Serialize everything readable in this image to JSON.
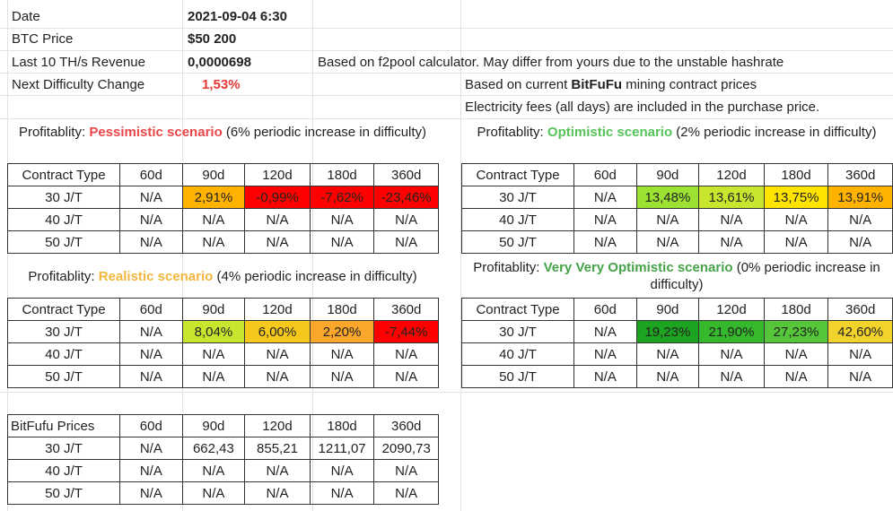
{
  "info": {
    "date_label": "Date",
    "date_value": "2021-09-04 6:30",
    "btc_label": "BTC Price",
    "btc_value": "$50 200",
    "revenue_label": "Last 10 TH/s Revenue",
    "revenue_value": "0,0000698",
    "revenue_note": "Based on f2pool calculator. May differ from yours due to the unstable hashrate",
    "difficulty_label": "Next Difficulty Change",
    "difficulty_value": "1,53%",
    "contract_note_prefix": "Based on current ",
    "contract_note_brand": "BitFuFu",
    "contract_note_suffix": " mining contract prices",
    "electricity_note": "Electricity fees (all days) are included in the purchase price."
  },
  "colors": {
    "red": "#ff0000",
    "orange": "#ffb300",
    "yellow_orange": "#f9c93e",
    "light_green": "#9be233",
    "yellow_green": "#c8e62e",
    "yellow": "#ffe400",
    "yellow2": "#f2d32b",
    "orange2": "#f9a62a",
    "dark_green": "#1ca31f",
    "green": "#35b82c",
    "mid_green": "#55c63a",
    "amber": "#f7c81c"
  },
  "headers": [
    "Contract Type",
    "60d",
    "90d",
    "120d",
    "180d",
    "360d"
  ],
  "pessimistic": {
    "prefix": "Profitablity: ",
    "name": "Pessimistic scenario",
    "suffix": " (6% periodic increase in difficulty)",
    "rows": [
      {
        "cells": [
          "30 J/T",
          "N/A",
          "2,91%",
          "-0,99%",
          "-7,62%",
          "-23,46%"
        ],
        "colors": [
          "",
          "",
          "orange",
          "red",
          "red",
          "red"
        ]
      },
      {
        "cells": [
          "40 J/T",
          "N/A",
          "N/A",
          "N/A",
          "N/A",
          "N/A"
        ],
        "colors": [
          "",
          "",
          "",
          "",
          "",
          ""
        ]
      },
      {
        "cells": [
          "50 J/T",
          "N/A",
          "N/A",
          "N/A",
          "N/A",
          "N/A"
        ],
        "colors": [
          "",
          "",
          "",
          "",
          "",
          ""
        ]
      }
    ]
  },
  "optimistic": {
    "prefix": "Profitablity: ",
    "name": "Optimistic scenario",
    "suffix": " (2% periodic increase in difficulty)",
    "rows": [
      {
        "cells": [
          "30 J/T",
          "N/A",
          "13,48%",
          "13,61%",
          "13,75%",
          "13,91%"
        ],
        "colors": [
          "",
          "",
          "light_green",
          "yellow_green",
          "yellow",
          "orange"
        ]
      },
      {
        "cells": [
          "40 J/T",
          "N/A",
          "N/A",
          "N/A",
          "N/A",
          "N/A"
        ],
        "colors": [
          "",
          "",
          "",
          "",
          "",
          ""
        ]
      },
      {
        "cells": [
          "50 J/T",
          "N/A",
          "N/A",
          "N/A",
          "N/A",
          "N/A"
        ],
        "colors": [
          "",
          "",
          "",
          "",
          "",
          ""
        ]
      }
    ]
  },
  "realistic": {
    "prefix": "Profitablity: ",
    "name": "Realistic scenario",
    "suffix": " (4% periodic increase in difficulty)",
    "rows": [
      {
        "cells": [
          "30 J/T",
          "N/A",
          "8,04%",
          "6,00%",
          "2,20%",
          "-7,44%"
        ],
        "colors": [
          "",
          "",
          "yellow_green",
          "amber",
          "orange2",
          "red"
        ]
      },
      {
        "cells": [
          "40 J/T",
          "N/A",
          "N/A",
          "N/A",
          "N/A",
          "N/A"
        ],
        "colors": [
          "",
          "",
          "",
          "",
          "",
          ""
        ]
      },
      {
        "cells": [
          "50 J/T",
          "N/A",
          "N/A",
          "N/A",
          "N/A",
          "N/A"
        ],
        "colors": [
          "",
          "",
          "",
          "",
          "",
          ""
        ]
      }
    ]
  },
  "very_optimistic": {
    "prefix": "Profitablity: ",
    "name": "Very Very Optimistic scenario",
    "suffix": " (0% periodic increase in difficulty)",
    "rows": [
      {
        "cells": [
          "30 J/T",
          "N/A",
          "19,23%",
          "21,90%",
          "27,23%",
          "42,60%"
        ],
        "colors": [
          "",
          "",
          "dark_green",
          "green",
          "mid_green",
          "yellow2"
        ]
      },
      {
        "cells": [
          "40 J/T",
          "N/A",
          "N/A",
          "N/A",
          "N/A",
          "N/A"
        ],
        "colors": [
          "",
          "",
          "",
          "",
          "",
          ""
        ]
      },
      {
        "cells": [
          "50 J/T",
          "N/A",
          "N/A",
          "N/A",
          "N/A",
          "N/A"
        ],
        "colors": [
          "",
          "",
          "",
          "",
          "",
          ""
        ]
      }
    ]
  },
  "prices": {
    "headers": [
      "BitFufu Prices",
      "60d",
      "90d",
      "120d",
      "180d",
      "360d"
    ],
    "rows": [
      {
        "cells": [
          "30 J/T",
          "N/A",
          "662,43",
          "855,21",
          "1211,07",
          "2090,73"
        ]
      },
      {
        "cells": [
          "40 J/T",
          "N/A",
          "N/A",
          "N/A",
          "N/A",
          "N/A"
        ]
      },
      {
        "cells": [
          "50 J/T",
          "N/A",
          "N/A",
          "N/A",
          "N/A",
          "N/A"
        ]
      }
    ]
  }
}
